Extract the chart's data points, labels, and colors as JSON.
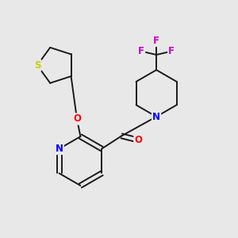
{
  "bg_color": "#e8e8e8",
  "bond_color": "#1a1a1a",
  "atom_colors": {
    "N": "#0000ff",
    "O": "#ff0000",
    "S": "#cccc00",
    "F": "#cc00cc",
    "C": "#1a1a1a"
  },
  "font_size": 8.5,
  "bond_width": 1.4,
  "figsize": [
    3.0,
    3.0
  ],
  "dpi": 100,
  "xlim": [
    0,
    10
  ],
  "ylim": [
    0,
    10
  ]
}
